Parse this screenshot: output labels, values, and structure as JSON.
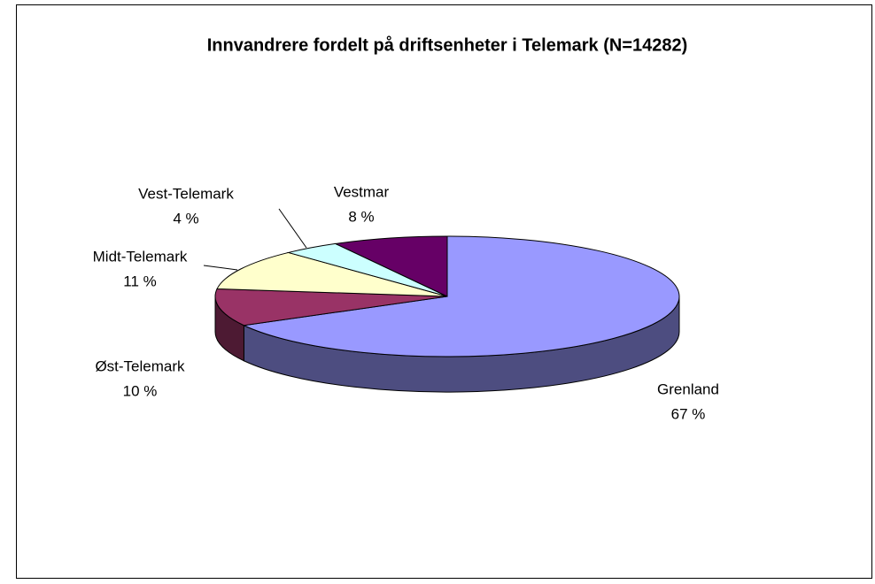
{
  "chart_data": {
    "type": "pie",
    "title": "Innvandrere fordelt på driftsenheter i Telemark (N=14282)",
    "categories": [
      "Grenland",
      "Øst-Telemark",
      "Midt-Telemark",
      "Vest-Telemark",
      "Vestmar"
    ],
    "values": [
      67,
      10,
      11,
      4,
      8
    ],
    "value_labels": [
      "67 %",
      "10 %",
      "11 %",
      "4 %",
      "8 %"
    ],
    "colors": [
      "#9999ff",
      "#993366",
      "#ffffcc",
      "#ccffff",
      "#660066"
    ],
    "start_angle": 0,
    "direction": "clockwise",
    "three_d": true
  }
}
